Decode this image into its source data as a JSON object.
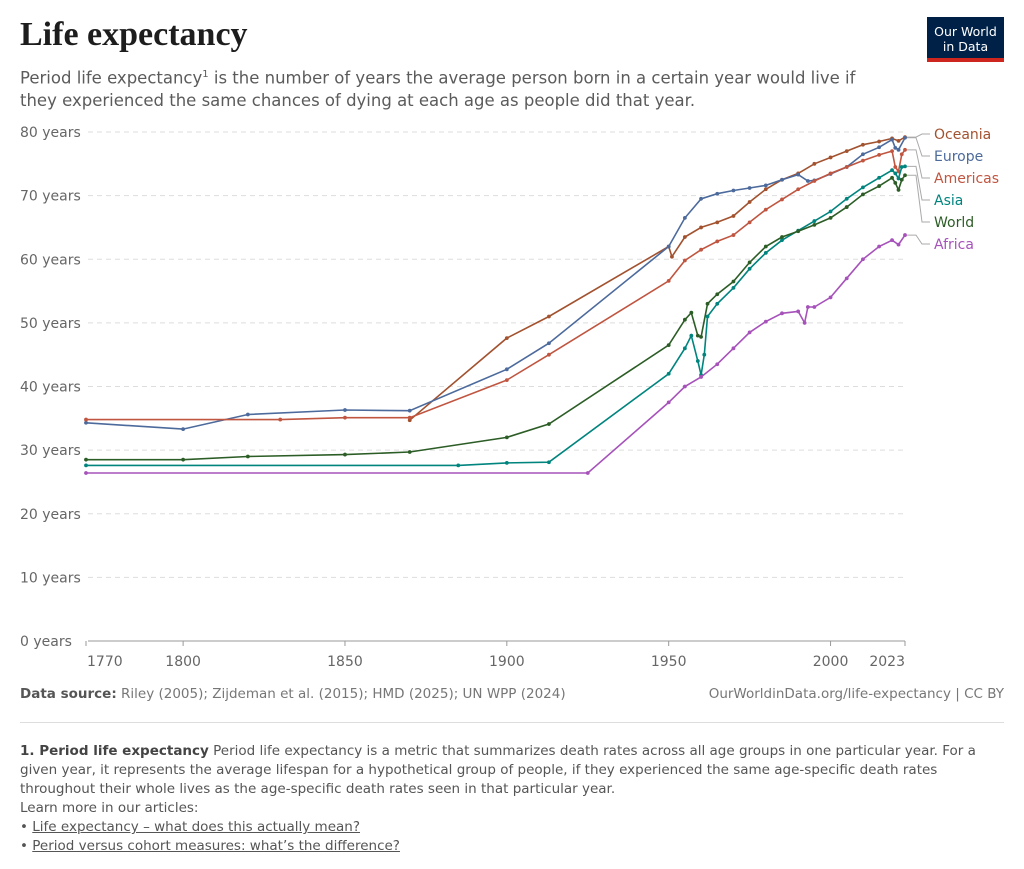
{
  "header": {
    "title": "Life expectancy",
    "subtitle_start": "Period life expectancy",
    "subtitle_sup": "1",
    "subtitle_end": " is the number of years the average person born in a certain year would live if they experienced the same chances of dying at each age as people did that year.",
    "logo": "Our World in Data"
  },
  "chart_data": {
    "type": "line",
    "xlim": [
      1770,
      2023
    ],
    "xticks": [
      1770,
      1800,
      1850,
      1900,
      1950,
      2000,
      2023
    ],
    "ylim": [
      0,
      80
    ],
    "yticks": [
      {
        "value": 0,
        "label": "0 years"
      },
      {
        "value": 10,
        "label": "10 years"
      },
      {
        "value": 20,
        "label": "20 years"
      },
      {
        "value": 30,
        "label": "30 years"
      },
      {
        "value": 40,
        "label": "40 years"
      },
      {
        "value": 50,
        "label": "50 years"
      },
      {
        "value": 60,
        "label": "60 years"
      },
      {
        "value": 70,
        "label": "70 years"
      },
      {
        "value": 80,
        "label": "80 years"
      }
    ],
    "grid": true,
    "series": [
      {
        "name": "Oceania",
        "color": "#a2522f",
        "x": [
          1870,
          1900,
          1913,
          1950,
          1951,
          1955,
          1960,
          1965,
          1970,
          1975,
          1980,
          1985,
          1990,
          1995,
          2000,
          2005,
          2010,
          2015,
          2019,
          2021,
          2023
        ],
        "values": [
          34.7,
          47.6,
          51,
          62,
          60.4,
          63.5,
          65,
          65.8,
          66.8,
          69,
          71,
          72.5,
          73.5,
          75,
          76,
          77,
          78,
          78.5,
          79,
          78.6,
          79.2
        ]
      },
      {
        "name": "Europe",
        "color": "#4c6a9c",
        "x": [
          1770,
          1800,
          1820,
          1850,
          1870,
          1900,
          1913,
          1950,
          1955,
          1960,
          1965,
          1970,
          1975,
          1980,
          1985,
          1990,
          1993,
          1995,
          2000,
          2005,
          2010,
          2015,
          2019,
          2020,
          2021,
          2023
        ],
        "values": [
          34.3,
          33.3,
          35.6,
          36.3,
          36.2,
          42.7,
          46.8,
          62,
          66.5,
          69.5,
          70.3,
          70.8,
          71.2,
          71.6,
          72.5,
          73.3,
          72.3,
          72.4,
          73.4,
          74.5,
          76.5,
          77.6,
          78.8,
          77.5,
          77.2,
          79.1
        ]
      },
      {
        "name": "Americas",
        "color": "#c05540",
        "x": [
          1770,
          1830,
          1850,
          1870,
          1900,
          1913,
          1950,
          1955,
          1960,
          1965,
          1970,
          1975,
          1980,
          1985,
          1990,
          1995,
          2000,
          2005,
          2010,
          2015,
          2019,
          2020,
          2021,
          2022,
          2023
        ],
        "values": [
          34.8,
          34.8,
          35.1,
          35.1,
          41,
          45,
          56.6,
          59.8,
          61.5,
          62.8,
          63.8,
          65.8,
          67.8,
          69.4,
          71,
          72.3,
          73.5,
          74.5,
          75.5,
          76.4,
          77,
          74.5,
          73.8,
          76.5,
          77.2
        ]
      },
      {
        "name": "Asia",
        "color": "#00847e",
        "x": [
          1770,
          1885,
          1900,
          1913,
          1950,
          1955,
          1957,
          1959,
          1960,
          1961,
          1962,
          1965,
          1970,
          1975,
          1980,
          1985,
          1990,
          1995,
          2000,
          2005,
          2010,
          2015,
          2019,
          2020,
          2021,
          2022,
          2023
        ],
        "values": [
          27.6,
          27.6,
          28,
          28.1,
          42,
          46,
          48,
          44,
          41.8,
          45,
          51,
          53,
          55.5,
          58.5,
          61,
          63,
          64.5,
          66,
          67.5,
          69.5,
          71.3,
          72.8,
          74,
          73.5,
          72.7,
          74.5,
          74.6
        ]
      },
      {
        "name": "World",
        "color": "#2c5d26",
        "x": [
          1770,
          1800,
          1820,
          1850,
          1870,
          1900,
          1913,
          1950,
          1955,
          1957,
          1959,
          1960,
          1962,
          1965,
          1970,
          1975,
          1980,
          1985,
          1990,
          1995,
          2000,
          2005,
          2010,
          2015,
          2019,
          2020,
          2021,
          2022,
          2023
        ],
        "values": [
          28.5,
          28.5,
          29,
          29.3,
          29.7,
          32,
          34.1,
          46.5,
          50.5,
          51.6,
          48,
          47.8,
          53,
          54.5,
          56.5,
          59.5,
          62,
          63.5,
          64.4,
          65.4,
          66.5,
          68.2,
          70.2,
          71.5,
          72.8,
          72,
          70.9,
          72.5,
          73.2
        ]
      },
      {
        "name": "Africa",
        "color": "#a652ba",
        "x": [
          1770,
          1925,
          1950,
          1955,
          1960,
          1965,
          1970,
          1975,
          1980,
          1985,
          1990,
          1992,
          1993,
          1995,
          2000,
          2005,
          2010,
          2015,
          2019,
          2021,
          2023
        ],
        "values": [
          26.4,
          26.4,
          37.5,
          40,
          41.5,
          43.5,
          46,
          48.5,
          50.2,
          51.5,
          51.8,
          50,
          52.5,
          52.5,
          54,
          57,
          60,
          62,
          63,
          62.3,
          63.8
        ]
      }
    ]
  },
  "footer": {
    "source_label": "Data source:",
    "source": " Riley (2005); Zijdeman et al. (2015); HMD (2025); UN WPP (2024)",
    "url": "OurWorldinData.org/life-expectancy | CC BY",
    "note_title": "1. Period life expectancy",
    "note_text": " Period life expectancy is a metric that summarizes death rates across all age groups in one particular year. For a given year, it represents the average lifespan for a hypothetical group of people, if they experienced the same age-specific death rates throughout their whole lives as the age-specific death rates seen in that particular year.",
    "learn_more": "Learn more in our articles:",
    "links": [
      "Life expectancy – what does this actually mean?",
      "Period versus cohort measures: what’s the difference?"
    ]
  }
}
